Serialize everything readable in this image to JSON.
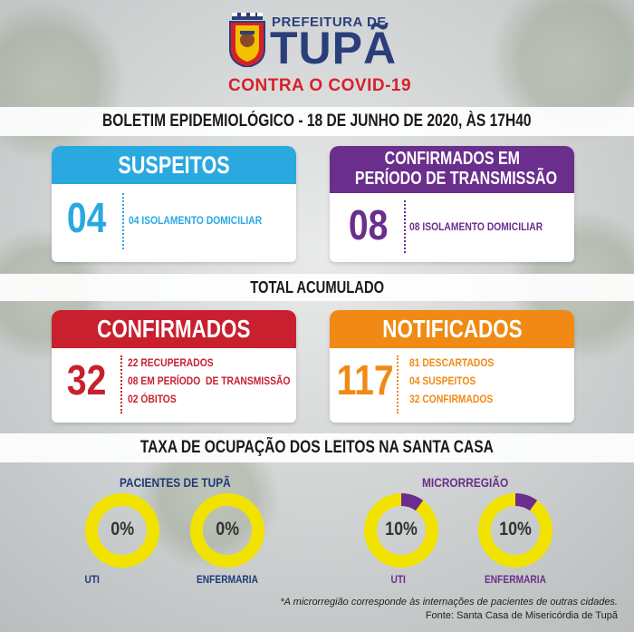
{
  "header": {
    "prefeitura": "PREFEITURA DE",
    "city": "TUPÃ",
    "campaign": "CONTRA O COVID-19"
  },
  "bulletin_title": "BOLETIM EPIDEMIOLÓGICO - 18 DE JUNHO DE 2020, ÀS 17H40",
  "current": {
    "suspeitos": {
      "title": "SUSPEITOS",
      "count": "04",
      "details": [
        "04 ISOLAMENTO DOMICILIAR"
      ],
      "color": "#2aa8e0"
    },
    "transmissao": {
      "title_line1": "CONFIRMADOS EM",
      "title_line2": "PERÍODO DE TRANSMISSÃO",
      "count": "08",
      "details": [
        "08 ISOLAMENTO DOMICILIAR"
      ],
      "color": "#6a2e8c"
    }
  },
  "accumulated_title": "TOTAL ACUMULADO",
  "accumulated": {
    "confirmados": {
      "title": "CONFIRMADOS",
      "count": "32",
      "details": [
        "22 RECUPERADOS",
        "08 EM PERÍODO  DE TRANSMISSÃO",
        "02 ÓBITOS"
      ],
      "color": "#c8202e"
    },
    "notificados": {
      "title": "NOTIFICADOS",
      "count": "117",
      "details": [
        "81 DESCARTADOS",
        "04 SUSPEITOS",
        "32 CONFIRMADOS"
      ],
      "color": "#f08a14"
    }
  },
  "occupancy_title": "TAXA DE OCUPAÇÃO DOS LEITOS NA SANTA CASA",
  "occupancy": {
    "tupa": {
      "title": "PACIENTES DE TUPÃ",
      "uti": {
        "label": "UTI",
        "value": 0,
        "text": "0%"
      },
      "enfermaria": {
        "label": "ENFERMARIA",
        "value": 0,
        "text": "0%"
      }
    },
    "micro": {
      "title": "MICRORREGIÃO",
      "uti": {
        "label": "UTI",
        "value": 10,
        "text": "10%"
      },
      "enfermaria": {
        "label": "ENFERMARIA",
        "value": 10,
        "text": "10%"
      }
    }
  },
  "colors": {
    "donut_ring": "#f2e200",
    "donut_fill": "#6a2e8c",
    "tupa_title": "#1f3a7a",
    "micro_title": "#6a2e8c"
  },
  "footnote_1": "*A microrregião corresponde às internações de pacientes de outras cidades.",
  "footnote_2": "Fonte: Santa Casa de Misericórdia de Tupã"
}
